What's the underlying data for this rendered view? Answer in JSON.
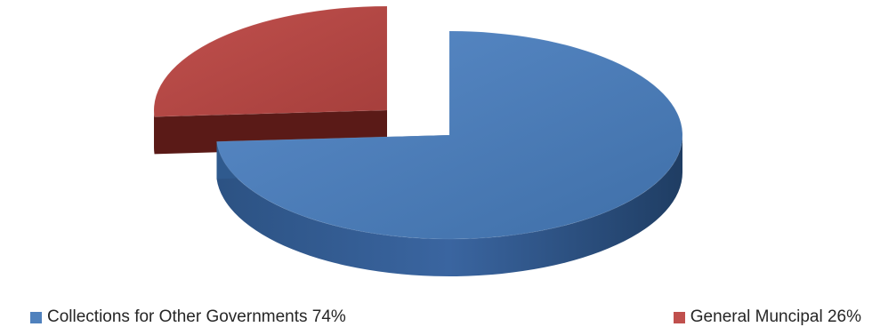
{
  "chart_data": {
    "type": "pie",
    "style": "3d-exploded",
    "title": "",
    "slices": [
      {
        "name": "Collections for Other Governments",
        "value": 74,
        "label": "Collections for Other Governments 74%",
        "color": "#4F81BD"
      },
      {
        "name": "General Muncipal",
        "value": 26,
        "label": "General Muncipal 26%",
        "color": "#C0504D"
      }
    ],
    "legend_position": "bottom"
  }
}
